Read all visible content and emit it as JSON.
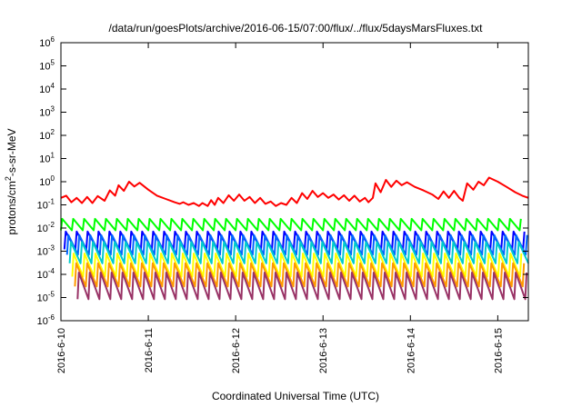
{
  "chart_data": {
    "type": "line",
    "title": "/data/run/goesPlots/archive/2016-06-15/07:00/flux/../flux/5daysMarsFluxes.txt",
    "xlabel": "Coordinated Universal Time (UTC)",
    "ylabel_parts": [
      "protons/cm",
      "2",
      "-s-sr-MeV"
    ],
    "yscale": "log",
    "ylim": [
      1e-06,
      1000000.0
    ],
    "y_ticks": [
      {
        "base": "10",
        "exp": "-6",
        "value": 1e-06
      },
      {
        "base": "10",
        "exp": "-5",
        "value": 1e-05
      },
      {
        "base": "10",
        "exp": "-4",
        "value": 0.0001
      },
      {
        "base": "10",
        "exp": "-3",
        "value": 0.001
      },
      {
        "base": "10",
        "exp": "-2",
        "value": 0.01
      },
      {
        "base": "10",
        "exp": "-1",
        "value": 0.1
      },
      {
        "base": "10",
        "exp": "0",
        "value": 1
      },
      {
        "base": "10",
        "exp": "1",
        "value": 10
      },
      {
        "base": "10",
        "exp": "2",
        "value": 100
      },
      {
        "base": "10",
        "exp": "3",
        "value": 1000
      },
      {
        "base": "10",
        "exp": "4",
        "value": 10000
      },
      {
        "base": "10",
        "exp": "5",
        "value": 100000
      },
      {
        "base": "10",
        "exp": "6",
        "value": 1000000
      }
    ],
    "x_ticks": [
      "2016-6-10",
      "2016-6-11",
      "2016-6-12",
      "2016-6-13",
      "2016-6-14",
      "2016-6-15"
    ],
    "x_range_days": [
      0,
      5.35
    ],
    "grid": false,
    "legend": "none",
    "series": [
      {
        "color": "#ff0000",
        "points": [
          [
            0.0,
            0.2
          ],
          [
            0.06,
            0.25
          ],
          [
            0.12,
            0.13
          ],
          [
            0.18,
            0.2
          ],
          [
            0.24,
            0.12
          ],
          [
            0.3,
            0.22
          ],
          [
            0.36,
            0.12
          ],
          [
            0.42,
            0.24
          ],
          [
            0.5,
            0.15
          ],
          [
            0.56,
            0.42
          ],
          [
            0.62,
            0.25
          ],
          [
            0.66,
            0.7
          ],
          [
            0.72,
            0.4
          ],
          [
            0.78,
            1.0
          ],
          [
            0.84,
            0.62
          ],
          [
            0.9,
            0.9
          ],
          [
            1.0,
            0.45
          ],
          [
            1.1,
            0.25
          ],
          [
            1.2,
            0.18
          ],
          [
            1.3,
            0.13
          ],
          [
            1.36,
            0.11
          ],
          [
            1.4,
            0.13
          ],
          [
            1.46,
            0.1
          ],
          [
            1.52,
            0.12
          ],
          [
            1.58,
            0.09
          ],
          [
            1.62,
            0.12
          ],
          [
            1.68,
            0.09
          ],
          [
            1.72,
            0.16
          ],
          [
            1.76,
            0.1
          ],
          [
            1.8,
            0.2
          ],
          [
            1.86,
            0.12
          ],
          [
            1.92,
            0.26
          ],
          [
            1.98,
            0.15
          ],
          [
            2.04,
            0.28
          ],
          [
            2.1,
            0.15
          ],
          [
            2.16,
            0.22
          ],
          [
            2.22,
            0.12
          ],
          [
            2.28,
            0.2
          ],
          [
            2.34,
            0.11
          ],
          [
            2.4,
            0.14
          ],
          [
            2.46,
            0.09
          ],
          [
            2.52,
            0.12
          ],
          [
            2.58,
            0.1
          ],
          [
            2.64,
            0.2
          ],
          [
            2.7,
            0.12
          ],
          [
            2.76,
            0.32
          ],
          [
            2.82,
            0.18
          ],
          [
            2.88,
            0.4
          ],
          [
            2.94,
            0.22
          ],
          [
            3.0,
            0.32
          ],
          [
            3.06,
            0.2
          ],
          [
            3.12,
            0.28
          ],
          [
            3.18,
            0.17
          ],
          [
            3.24,
            0.26
          ],
          [
            3.3,
            0.15
          ],
          [
            3.36,
            0.25
          ],
          [
            3.42,
            0.14
          ],
          [
            3.48,
            0.2
          ],
          [
            3.52,
            0.13
          ],
          [
            3.57,
            0.2
          ],
          [
            3.6,
            0.85
          ],
          [
            3.66,
            0.35
          ],
          [
            3.72,
            1.2
          ],
          [
            3.78,
            0.6
          ],
          [
            3.84,
            1.1
          ],
          [
            3.9,
            0.7
          ],
          [
            3.96,
            0.95
          ],
          [
            4.05,
            0.6
          ],
          [
            4.15,
            0.42
          ],
          [
            4.25,
            0.28
          ],
          [
            4.32,
            0.18
          ],
          [
            4.38,
            0.38
          ],
          [
            4.44,
            0.2
          ],
          [
            4.5,
            0.4
          ],
          [
            4.56,
            0.2
          ],
          [
            4.6,
            0.15
          ],
          [
            4.65,
            0.85
          ],
          [
            4.72,
            0.45
          ],
          [
            4.78,
            1.0
          ],
          [
            4.84,
            0.7
          ],
          [
            4.9,
            1.5
          ],
          [
            5.0,
            1.0
          ],
          [
            5.1,
            0.6
          ],
          [
            5.2,
            0.35
          ],
          [
            5.28,
            0.25
          ],
          [
            5.35,
            0.2
          ]
        ]
      },
      {
        "color": "#00ff00",
        "peak": 0.025,
        "trough": 0.008,
        "phase": 0.0
      },
      {
        "color": "#0000ff",
        "peak": 0.007,
        "trough": 0.0012,
        "phase": 0.04
      },
      {
        "color": "#0066ff",
        "peak": 0.005,
        "trough": 0.0007,
        "phase": 0.07
      },
      {
        "color": "#00cccc",
        "peak": 0.0025,
        "trough": 0.0003,
        "phase": 0.1
      },
      {
        "color": "#ffff00",
        "peak": 0.0008,
        "trough": 8e-05,
        "phase": 0.13
      },
      {
        "color": "#ff9900",
        "peak": 0.0003,
        "trough": 3e-05,
        "phase": 0.16
      },
      {
        "color": "#993366",
        "peak": 0.00012,
        "trough": 8.5e-06,
        "phase": 0.19
      }
    ]
  }
}
